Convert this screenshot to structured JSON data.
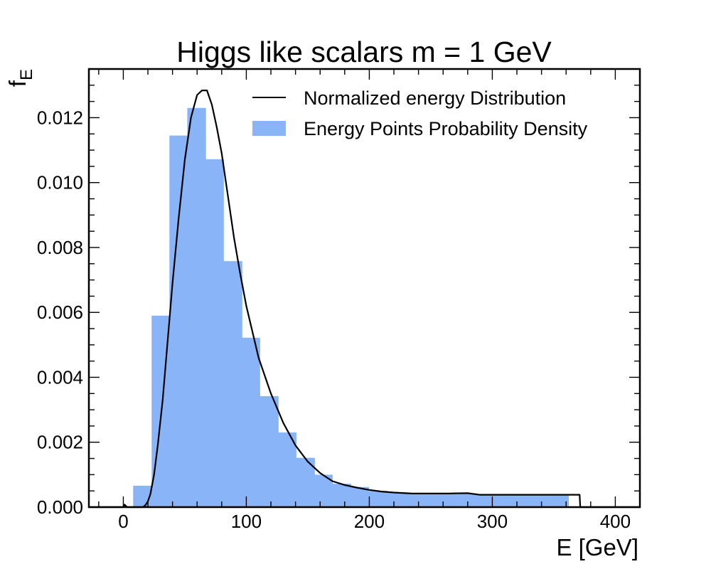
{
  "chart_data": {
    "type": "bar",
    "title": "Higgs like scalars m = 1 GeV",
    "xlabel": "E [GeV]",
    "ylabel": "f",
    "ylabel_sub": "E",
    "xlim": [
      -28,
      420
    ],
    "ylim": [
      0,
      0.0135
    ],
    "x_ticks": [
      0,
      100,
      200,
      300,
      400
    ],
    "x_tick_labels": [
      "0",
      "100",
      "200",
      "300",
      "400"
    ],
    "y_ticks": [
      0,
      0.002,
      0.004,
      0.006,
      0.008,
      0.01,
      0.012
    ],
    "y_tick_labels": [
      "0.000",
      "0.002",
      "0.004",
      "0.006",
      "0.008",
      "0.010",
      "0.012"
    ],
    "grid": false,
    "legend_position": "top-right",
    "colors": {
      "histogram": "#8ab4f8",
      "curve": "#000000"
    },
    "series": [
      {
        "name": "Energy Points Probability Density",
        "kind": "histogram",
        "bin_edges": [
          8,
          23,
          37.5,
          52,
          67,
          81.5,
          96.5,
          111,
          126,
          140.5,
          155.5,
          170,
          185,
          199.5,
          214.5,
          229,
          244,
          258.5,
          273.5,
          288,
          303,
          317.5,
          332.5,
          347,
          362
        ],
        "values": [
          0.00066,
          0.0059,
          0.01145,
          0.0123,
          0.01072,
          0.00758,
          0.00522,
          0.00342,
          0.0023,
          0.00152,
          0.001,
          0.00072,
          0.00062,
          0.0005,
          0.00044,
          0.00042,
          0.00042,
          0.0004,
          0.00042,
          0.0004,
          0.00038,
          0.0004,
          0.00038,
          0.00036
        ]
      },
      {
        "name": "Normalized energy Distribution",
        "kind": "line",
        "x": [
          -28,
          0,
          1,
          2,
          3,
          16,
          18,
          20,
          22,
          25,
          28,
          32,
          36,
          40,
          45,
          50,
          55,
          60,
          64,
          68,
          72,
          76,
          80,
          85,
          90,
          95,
          100,
          110,
          120,
          130,
          140,
          150,
          160,
          170,
          180,
          190,
          200,
          210,
          220,
          235,
          250,
          265,
          280,
          290,
          300,
          320,
          340,
          360,
          371,
          371.5,
          420
        ],
        "y": [
          0,
          0,
          8e-05,
          4e-05,
          0,
          0,
          6e-05,
          0.00018,
          0.0004,
          0.001,
          0.0019,
          0.0033,
          0.0051,
          0.0069,
          0.0089,
          0.0107,
          0.012,
          0.0127,
          0.01284,
          0.01284,
          0.0124,
          0.0117,
          0.0109,
          0.0096,
          0.0083,
          0.0072,
          0.0062,
          0.0046,
          0.0035,
          0.0026,
          0.0019,
          0.0014,
          0.00105,
          0.0008,
          0.00068,
          0.0006,
          0.00053,
          0.00048,
          0.00045,
          0.00042,
          0.00042,
          0.00042,
          0.00043,
          0.00038,
          0.00038,
          0.00038,
          0.00038,
          0.00038,
          0.00038,
          0,
          0
        ]
      }
    ]
  }
}
